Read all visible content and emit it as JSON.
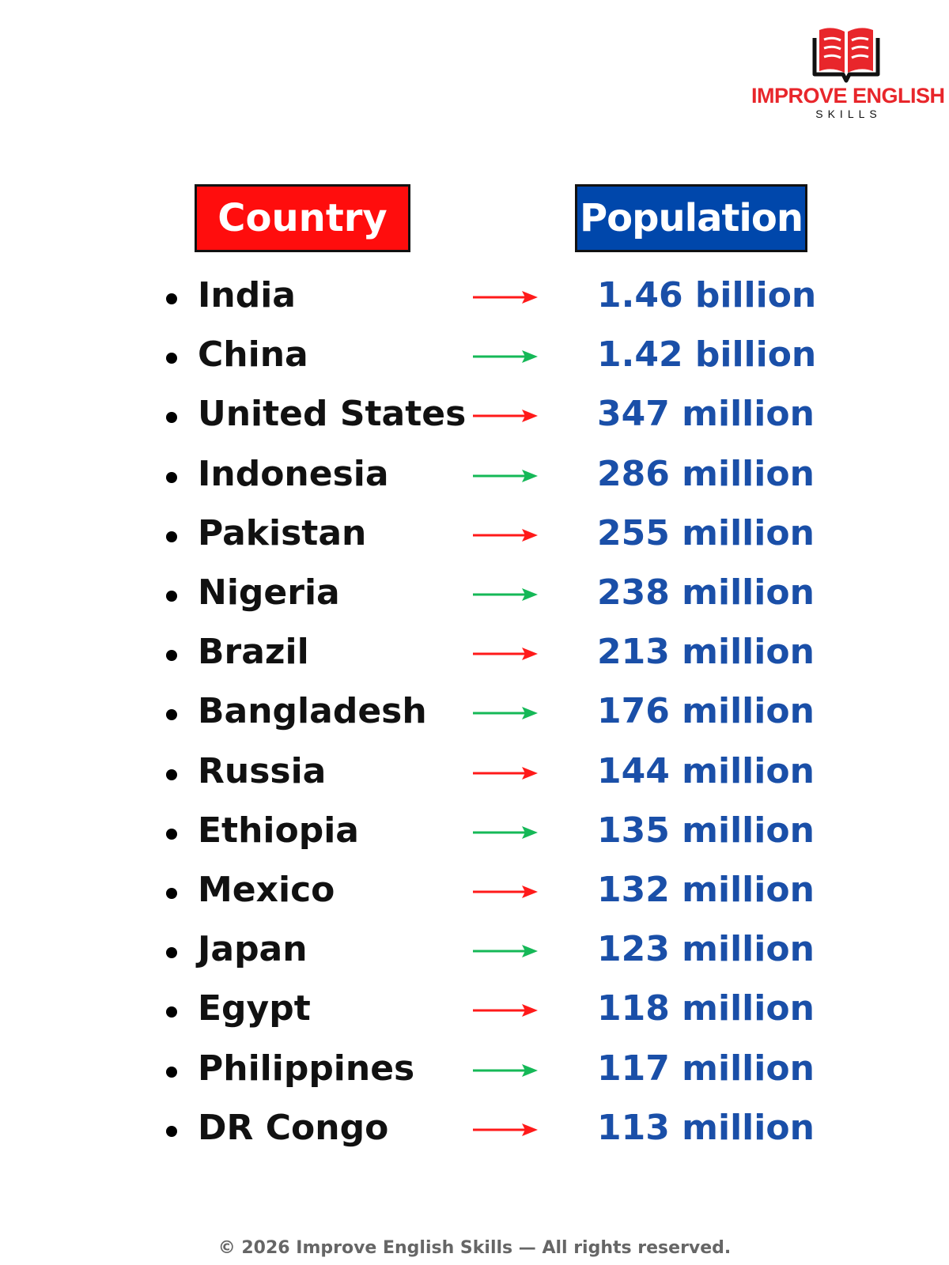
{
  "brand": {
    "title": "IMPROVE ENGLISH",
    "subtitle": "SKILLS",
    "color": "#e8262b"
  },
  "headers": {
    "country": "Country",
    "population": "Population",
    "country_bg": "#ff0d0d",
    "population_bg": "#0047ab"
  },
  "colors": {
    "population_text": "#1a4fa8",
    "arrow_red": "#ff1a1a",
    "arrow_green": "#15b857"
  },
  "rows": [
    {
      "country": "India",
      "population": "1.46 billion",
      "arrow": "red"
    },
    {
      "country": "China",
      "population": "1.42 billion",
      "arrow": "green"
    },
    {
      "country": "United States",
      "population": "347 million",
      "arrow": "red"
    },
    {
      "country": "Indonesia",
      "population": "286 million",
      "arrow": "green"
    },
    {
      "country": "Pakistan",
      "population": "255 million",
      "arrow": "red"
    },
    {
      "country": "Nigeria",
      "population": "238 million",
      "arrow": "green"
    },
    {
      "country": "Brazil",
      "population": "213 million",
      "arrow": "red"
    },
    {
      "country": "Bangladesh",
      "population": "176 million",
      "arrow": "green"
    },
    {
      "country": "Russia",
      "population": "144 million",
      "arrow": "red"
    },
    {
      "country": "Ethiopia",
      "population": "135 million",
      "arrow": "green"
    },
    {
      "country": "Mexico",
      "population": "132 million",
      "arrow": "red"
    },
    {
      "country": "Japan",
      "population": "123 million",
      "arrow": "green"
    },
    {
      "country": "Egypt",
      "population": "118 million",
      "arrow": "red"
    },
    {
      "country": "Philippines",
      "population": "117 million",
      "arrow": "green"
    },
    {
      "country": "DR Congo",
      "population": "113 million",
      "arrow": "red"
    }
  ],
  "footer": "© 2026 Improve English Skills — All rights reserved."
}
